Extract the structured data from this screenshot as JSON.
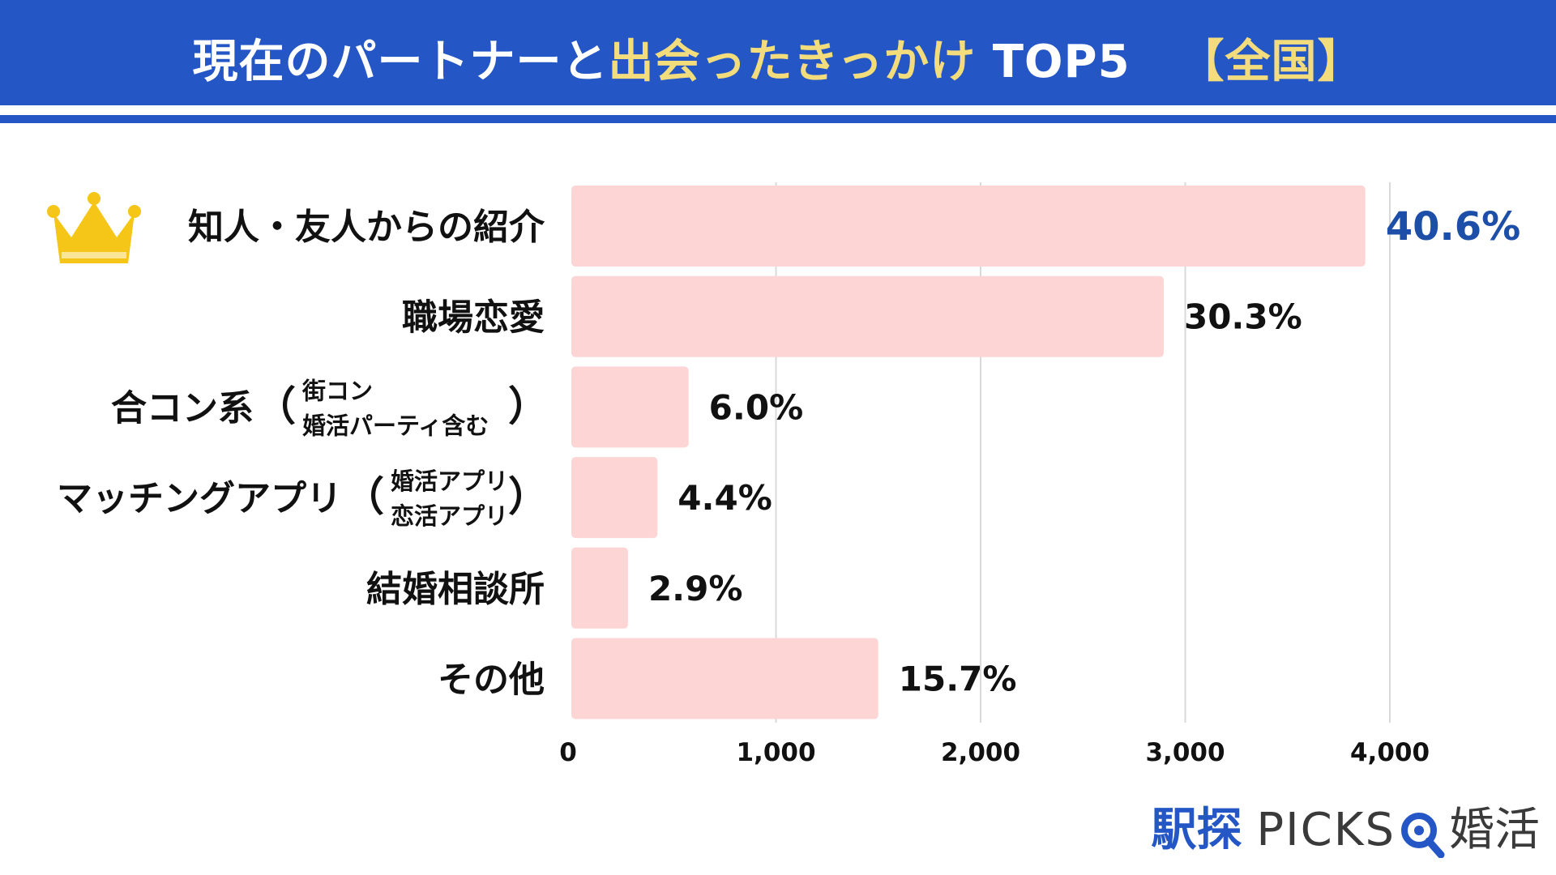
{
  "header": {
    "title_part1": "現在のパートナーと",
    "title_highlight": "出会ったきっかけ",
    "title_part2": "TOP5",
    "title_region": "【全国】"
  },
  "colors": {
    "header_bg": "#2457c5",
    "header_highlight": "#f3dc7c",
    "bar_fill": "#fdd5d5",
    "first_label": "#1e4fa8",
    "crown": "#f5c518",
    "grid": "#d9d9d9"
  },
  "chart_data": {
    "type": "bar",
    "orientation": "horizontal",
    "categories": [
      {
        "main": "知人・友人からの紹介",
        "icon": "crown-icon"
      },
      {
        "main": "職場恋愛"
      },
      {
        "main": "合コン系",
        "open": "（",
        "sub": [
          "街コン",
          "婚活パーティ含む"
        ],
        "close": "）"
      },
      {
        "main": "マッチングアプリ",
        "open": "（",
        "sub": [
          "婚活アプリ",
          "恋活アプリ"
        ],
        "close": "）"
      },
      {
        "main": "結婚相談所"
      },
      {
        "main": "その他"
      }
    ],
    "values": [
      3880,
      2895,
      573,
      421,
      277,
      1500
    ],
    "value_labels": [
      "40.6%",
      "30.3%",
      "6.0%",
      "4.4%",
      "2.9%",
      "15.7%"
    ],
    "xlim": [
      0,
      4500
    ],
    "x_ticks": [
      0,
      1000,
      2000,
      3000,
      4000
    ],
    "x_tick_labels": [
      "0",
      "1,000",
      "2,000",
      "3,000",
      "4,000"
    ],
    "grid": true
  },
  "logo": {
    "text_jp1": "駅探",
    "text_en": "PICKS",
    "icon": "magnifier-q-icon",
    "text_jp2": "婚活"
  }
}
